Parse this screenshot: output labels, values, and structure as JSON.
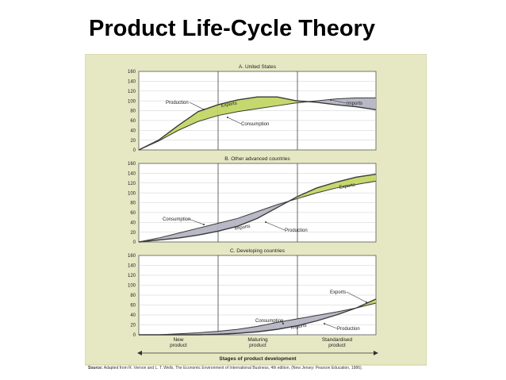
{
  "title": "Product Life-Cycle Theory",
  "colors": {
    "panel_background": "#e6e8c4",
    "figure_border": "#d9d6a8",
    "plot_background": "#ffffff",
    "export_fill": "#c5d86d",
    "import_fill": "#b8b8c6",
    "line": "#3a3a3a",
    "grid": "#cccccc"
  },
  "chart_data": [
    {
      "type": "area",
      "title": "A. United States",
      "ylim": [
        0,
        160
      ],
      "yticks": [
        0,
        20,
        40,
        60,
        80,
        100,
        120,
        140,
        160
      ],
      "x": [
        0,
        1,
        2,
        3,
        4,
        5,
        6,
        7,
        8,
        9,
        10,
        11,
        12
      ],
      "series": [
        {
          "name": "Production",
          "values": [
            0,
            20,
            50,
            78,
            92,
            102,
            108,
            108,
            100,
            97,
            92,
            88,
            82
          ]
        },
        {
          "name": "Consumption",
          "values": [
            0,
            18,
            40,
            58,
            70,
            78,
            84,
            90,
            96,
            100,
            104,
            106,
            106
          ]
        }
      ],
      "annotations": [
        "Production",
        "Exports",
        "Consumption",
        "Imports"
      ]
    },
    {
      "type": "area",
      "title": "B. Other advanced countries",
      "ylim": [
        0,
        160
      ],
      "yticks": [
        0,
        20,
        40,
        60,
        80,
        100,
        120,
        140,
        160
      ],
      "x": [
        0,
        1,
        2,
        3,
        4,
        5,
        6,
        7,
        8,
        9,
        10,
        11,
        12
      ],
      "series": [
        {
          "name": "Consumption",
          "values": [
            0,
            8,
            18,
            28,
            38,
            48,
            62,
            76,
            88,
            100,
            110,
            117,
            124
          ]
        },
        {
          "name": "Production",
          "values": [
            0,
            4,
            8,
            14,
            22,
            32,
            48,
            70,
            92,
            110,
            122,
            132,
            138
          ]
        }
      ],
      "annotations": [
        "Consumption",
        "Imports",
        "Production",
        "Exports"
      ]
    },
    {
      "type": "area",
      "title": "C. Developing countries",
      "ylim": [
        0,
        160
      ],
      "yticks": [
        0,
        20,
        40,
        60,
        80,
        100,
        120,
        140,
        160
      ],
      "x": [
        0,
        1,
        2,
        3,
        4,
        5,
        6,
        7,
        8,
        9,
        10,
        11,
        12
      ],
      "series": [
        {
          "name": "Consumption",
          "values": [
            0,
            0,
            2,
            4,
            7,
            11,
            17,
            25,
            32,
            39,
            46,
            54,
            64
          ]
        },
        {
          "name": "Production",
          "values": [
            0,
            0,
            0,
            0,
            1,
            3,
            6,
            11,
            18,
            28,
            40,
            54,
            72
          ]
        }
      ],
      "annotations": [
        "Exports",
        "Consumption",
        "Imports",
        "Production"
      ]
    }
  ],
  "stages": {
    "labels": [
      "New\nproduct",
      "Maturing\nproduct",
      "Standardised\nproduct"
    ],
    "axis_label": "Stages of product development"
  },
  "source": {
    "label": "Source:",
    "text": " Adapted from R. Vernon and L. T. Wells, The Economic Environment of International Business, 4th edition, (New Jersey: Pearson Education, 1986)."
  }
}
